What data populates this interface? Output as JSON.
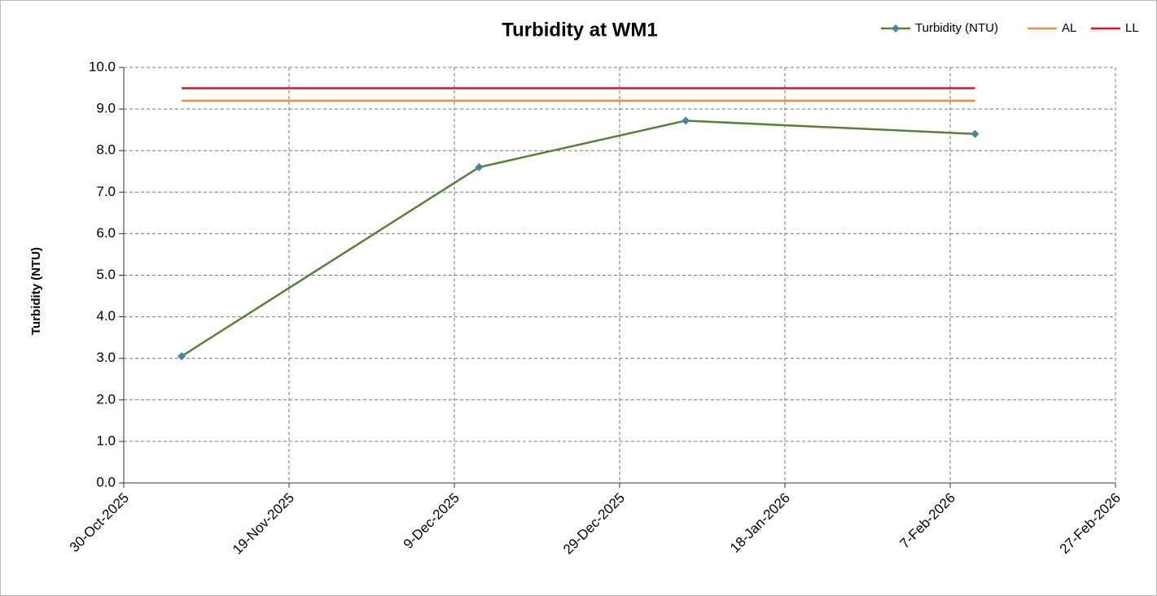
{
  "chart_data": {
    "type": "line",
    "title": "Turbidity at WM1",
    "y_label": "Turbidity (NTU)",
    "x": [
      "2025-11-06",
      "2025-12-12",
      "2026-01-06",
      "2026-02-10"
    ],
    "series": [
      {
        "name": "Turbidity (NTU)",
        "color": "#548235",
        "marker": "diamond",
        "marker_color": "#41889a",
        "values": [
          3.05,
          7.6,
          8.72,
          8.4
        ]
      },
      {
        "name": "AL",
        "color": "#ed8c3a",
        "values": [
          9.2,
          9.2,
          9.2,
          9.2
        ]
      },
      {
        "name": "LL",
        "color": "#e3121a",
        "values": [
          9.5,
          9.5,
          9.5,
          9.5
        ]
      }
    ],
    "xlim": [
      "2025-10-30",
      "2026-02-27"
    ],
    "xticks": [
      {
        "value": "2025-10-30",
        "label": "30-Oct-2025"
      },
      {
        "value": "2025-11-19",
        "label": "19-Nov-2025"
      },
      {
        "value": "2025-12-09",
        "label": "9-Dec-2025"
      },
      {
        "value": "2025-12-29",
        "label": "29-Dec-2025"
      },
      {
        "value": "2026-01-18",
        "label": "18-Jan-2026"
      },
      {
        "value": "2026-02-07",
        "label": "7-Feb-2026"
      },
      {
        "value": "2026-02-27",
        "label": "27-Feb-2026"
      }
    ],
    "ylim": [
      0,
      10
    ],
    "yticks": [
      {
        "value": 0,
        "label": "0.0"
      },
      {
        "value": 1,
        "label": "1.0"
      },
      {
        "value": 2,
        "label": "2.0"
      },
      {
        "value": 3,
        "label": "3.0"
      },
      {
        "value": 4,
        "label": "4.0"
      },
      {
        "value": 5,
        "label": "5.0"
      },
      {
        "value": 6,
        "label": "6.0"
      },
      {
        "value": 7,
        "label": "7.0"
      },
      {
        "value": 8,
        "label": "8.0"
      },
      {
        "value": 9,
        "label": "9.0"
      },
      {
        "value": 10,
        "label": "10.0"
      }
    ],
    "grid": true,
    "legend": "top-right"
  }
}
